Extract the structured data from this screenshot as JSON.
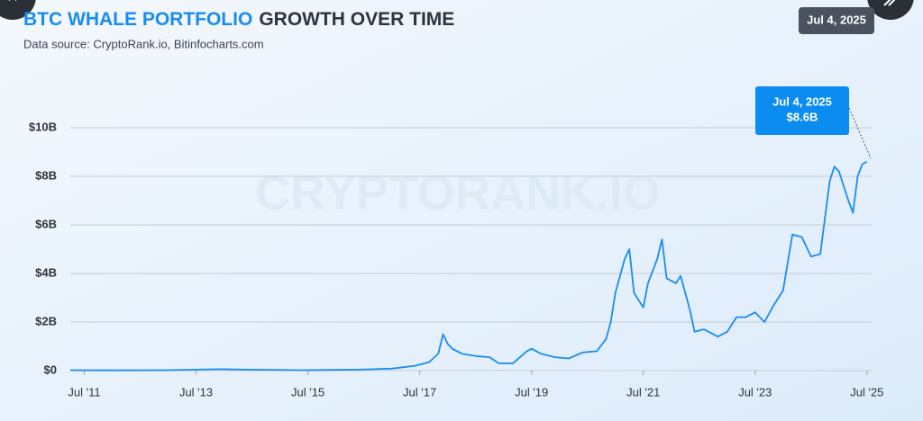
{
  "chart_data": {
    "type": "line",
    "title_highlight": "BTC WHALE PORTFOLIO",
    "title": "GROWTH OVER TIME",
    "subtitle": "Data source: CryptoRank.io, Bitinfocharts.com",
    "date_badge": "Jul 4, 2025",
    "watermark": "CRYPTORANK.IO",
    "annotation": {
      "title": "Jul 4, 2025",
      "text": "$8.6B"
    },
    "color": "#1a8cf0",
    "grid": true,
    "x": [
      "2011-04",
      "2012-01",
      "2013-01",
      "2013-12",
      "2014-06",
      "2015-06",
      "2016-06",
      "2017-01",
      "2017-06",
      "2017-09",
      "2017-11",
      "2017-12",
      "2018-01",
      "2018-02",
      "2018-04",
      "2018-07",
      "2018-10",
      "2018-12",
      "2019-03",
      "2019-06",
      "2019-07",
      "2019-09",
      "2019-12",
      "2020-03",
      "2020-06",
      "2020-09",
      "2020-11",
      "2020-12",
      "2021-01",
      "2021-03",
      "2021-04",
      "2021-05",
      "2021-07",
      "2021-08",
      "2021-10",
      "2021-11",
      "2021-12",
      "2022-02",
      "2022-03",
      "2022-05",
      "2022-06",
      "2022-08",
      "2022-11",
      "2023-01",
      "2023-03",
      "2023-05",
      "2023-07",
      "2023-09",
      "2023-11",
      "2024-01",
      "2024-03",
      "2024-05",
      "2024-07",
      "2024-09",
      "2024-11",
      "2024-12",
      "2025-01",
      "2025-03",
      "2025-04",
      "2025-05",
      "2025-06",
      "2025-07"
    ],
    "values": [
      0.02,
      0.01,
      0.02,
      0.06,
      0.04,
      0.02,
      0.04,
      0.08,
      0.2,
      0.35,
      0.7,
      1.5,
      1.1,
      0.9,
      0.7,
      0.6,
      0.55,
      0.3,
      0.3,
      0.8,
      0.9,
      0.7,
      0.55,
      0.5,
      0.75,
      0.8,
      1.3,
      2.0,
      3.2,
      4.6,
      5.0,
      3.2,
      2.6,
      3.6,
      4.6,
      5.4,
      3.8,
      3.6,
      3.9,
      2.5,
      1.6,
      1.7,
      1.4,
      1.6,
      2.2,
      2.2,
      2.4,
      2.0,
      2.7,
      3.3,
      5.6,
      5.5,
      4.7,
      4.8,
      7.8,
      8.4,
      8.2,
      7.0,
      6.5,
      8.0,
      8.5,
      8.6
    ],
    "xlim": [
      "2011-04",
      "2025-08"
    ],
    "xticks": [
      {
        "value": "2011-07",
        "label": "Jul '11"
      },
      {
        "value": "2013-07",
        "label": "Jul '13"
      },
      {
        "value": "2015-07",
        "label": "Jul '15"
      },
      {
        "value": "2017-07",
        "label": "Jul '17"
      },
      {
        "value": "2019-07",
        "label": "Jul '19"
      },
      {
        "value": "2021-07",
        "label": "Jul '21"
      },
      {
        "value": "2023-07",
        "label": "Jul '23"
      },
      {
        "value": "2025-07",
        "label": "Jul '25"
      }
    ],
    "ylim": [
      0,
      10
    ],
    "yticks": [
      {
        "value": 0,
        "label": "$0"
      },
      {
        "value": 2,
        "label": "$2B"
      },
      {
        "value": 4,
        "label": "$4B"
      },
      {
        "value": 6,
        "label": "$6B"
      },
      {
        "value": 8,
        "label": "$8B"
      },
      {
        "value": 10,
        "label": "$10B"
      }
    ]
  }
}
